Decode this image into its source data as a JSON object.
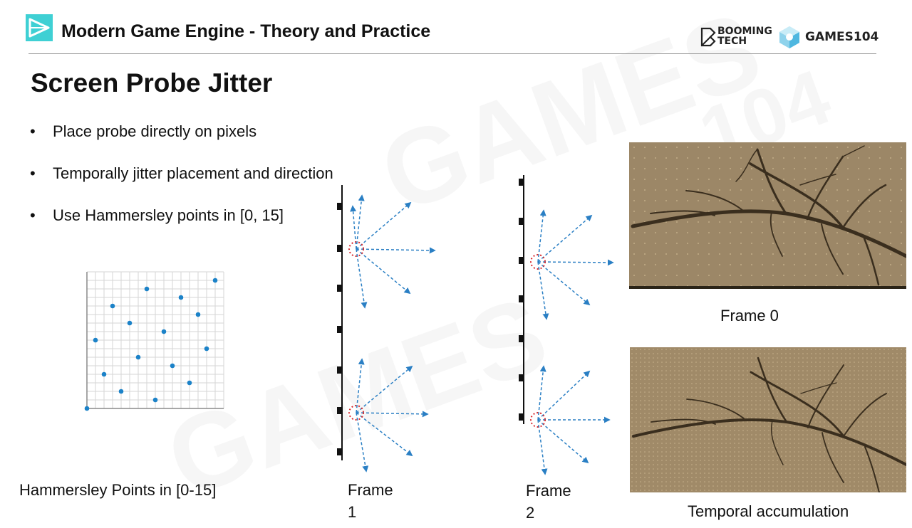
{
  "header": {
    "title": "Modern Game Engine - Theory and Practice",
    "brand_booming_line1": "BOOMING",
    "brand_booming_line2": "TECH",
    "brand_games": "GAMES104"
  },
  "slide": {
    "title": "Screen Probe Jitter",
    "bullets": [
      "Place probe directly on pixels",
      "Temporally jitter placement and direction",
      "Use Hammersley points in [0, 15]"
    ]
  },
  "figures": {
    "hammersley_caption": "Hammersley Points in [0-15]",
    "frame1_caption_line1": "Frame",
    "frame1_caption_line2": "1",
    "frame2_caption_line1": "Frame",
    "frame2_caption_line2": "2",
    "frame0_caption": "Frame 0",
    "temporal_caption": "Temporal accumulation"
  },
  "watermark": {
    "text": "GAMES104"
  },
  "colors": {
    "accent_cyan": "#3fd0d4",
    "probe_arrow": "#2a7fc4",
    "probe_center": "#d8262a",
    "point": "#1b82c8",
    "photo_bg": "#9e8a6b",
    "branch": "#3a2e1e"
  }
}
